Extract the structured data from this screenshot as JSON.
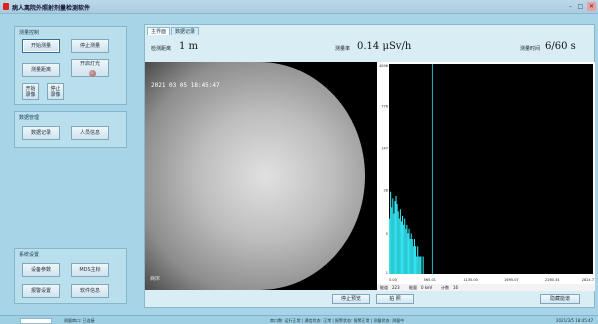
{
  "window": {
    "title": "病人离院外照射剂量检测软件",
    "controls": [
      "–",
      "□",
      "✕"
    ]
  },
  "measure_control": {
    "title": "测量控制",
    "start_measure": "开始测量",
    "stop_measure": "停止测量",
    "measure_distance": "测量距离",
    "start_fill_light": "开启灯光",
    "start_record": "开始\n录像",
    "stop_record": "停止\n录像"
  },
  "data_management": {
    "title": "数据管理",
    "data_record": "数据记录",
    "personnel_info": "人员信息"
  },
  "system_settings": {
    "title": "系统设置",
    "device_params": "设备参数",
    "mds_main": "MDS主标",
    "alarm_settings": "报警设置",
    "software_info": "软件信息"
  },
  "tabs": [
    "主界面",
    "数据记录"
  ],
  "readouts": {
    "distance_label": "检测距离",
    "distance_value": "1 m",
    "dose_label": "测量率",
    "dose_value": "0.14 μSv/h",
    "time_label": "测量时间",
    "time_value": "6/60 s"
  },
  "camera": {
    "timestamp": "2021 03 05 18:45:47",
    "footer": "病床"
  },
  "spectrum_info": {
    "left": "能道",
    "left_value": "223",
    "energy_label": "能量",
    "energy_value": "0 keV",
    "count_label": "计数",
    "count_value": "16"
  },
  "chart_data": {
    "type": "bar",
    "ylim": [
      1,
      4096
    ],
    "yscale": "log",
    "xlim": [
      0,
      2824.71
    ],
    "yticks": [
      "4096",
      "776",
      "147",
      "28",
      "5",
      "1"
    ],
    "xticks": [
      "0.00",
      "565.01",
      "1130.00",
      "1695.07",
      "2260.34",
      "2824.71"
    ],
    "marker_x": 600,
    "color": "#33e4f0",
    "background": "#000000",
    "x": [
      0,
      15,
      30,
      45,
      60,
      75,
      90,
      105,
      120,
      135,
      150,
      165,
      180,
      195,
      210,
      225,
      240,
      255,
      270,
      285,
      300,
      315,
      330,
      345,
      360,
      375,
      390,
      405,
      420,
      435,
      450,
      465,
      480
    ],
    "values": [
      9,
      26,
      14,
      20,
      11,
      18,
      22,
      16,
      12,
      9,
      13,
      8,
      10,
      7,
      9,
      6,
      7,
      5,
      6,
      4,
      5,
      4,
      3,
      4,
      3,
      2,
      3,
      2,
      2,
      2,
      1,
      2,
      1
    ]
  },
  "bottom_buttons": {
    "stop_preview": "停止预览",
    "capture": "拍 照",
    "hide_spectrum": "隐藏能谱"
  },
  "statusbar": {
    "left": "测量串口: 已连接",
    "middle": "串口数: 运行正常 | 通信状态: 正常 | 报警状态: 报警正常 | 测量状态: 测量中",
    "right": "2021/3/5 18:45:47"
  }
}
